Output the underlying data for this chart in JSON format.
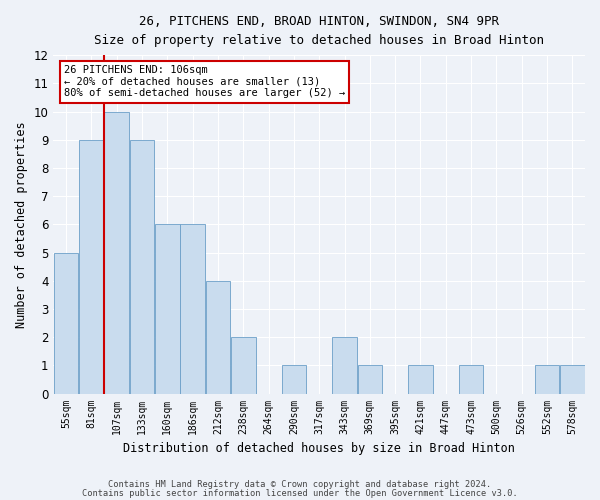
{
  "title1": "26, PITCHENS END, BROAD HINTON, SWINDON, SN4 9PR",
  "title2": "Size of property relative to detached houses in Broad Hinton",
  "xlabel": "Distribution of detached houses by size in Broad Hinton",
  "ylabel": "Number of detached properties",
  "categories": [
    "55sqm",
    "81sqm",
    "107sqm",
    "133sqm",
    "160sqm",
    "186sqm",
    "212sqm",
    "238sqm",
    "264sqm",
    "290sqm",
    "317sqm",
    "343sqm",
    "369sqm",
    "395sqm",
    "421sqm",
    "447sqm",
    "473sqm",
    "500sqm",
    "526sqm",
    "552sqm",
    "578sqm"
  ],
  "values": [
    5,
    9,
    10,
    9,
    6,
    6,
    4,
    2,
    0,
    1,
    0,
    2,
    1,
    0,
    1,
    0,
    1,
    0,
    0,
    1,
    1
  ],
  "bar_color": "#c9dcee",
  "bar_edge_color": "#6b9fc8",
  "background_color": "#eef2f8",
  "grid_color": "#ffffff",
  "annotation_text": "26 PITCHENS END: 106sqm\n← 20% of detached houses are smaller (13)\n80% of semi-detached houses are larger (52) →",
  "annotation_box_color": "#ffffff",
  "annotation_box_edge": "#cc0000",
  "vline_color": "#cc0000",
  "vline_x": 1.5,
  "ylim": [
    0,
    12
  ],
  "yticks": [
    0,
    1,
    2,
    3,
    4,
    5,
    6,
    7,
    8,
    9,
    10,
    11,
    12
  ],
  "footnote1": "Contains HM Land Registry data © Crown copyright and database right 2024.",
  "footnote2": "Contains public sector information licensed under the Open Government Licence v3.0."
}
